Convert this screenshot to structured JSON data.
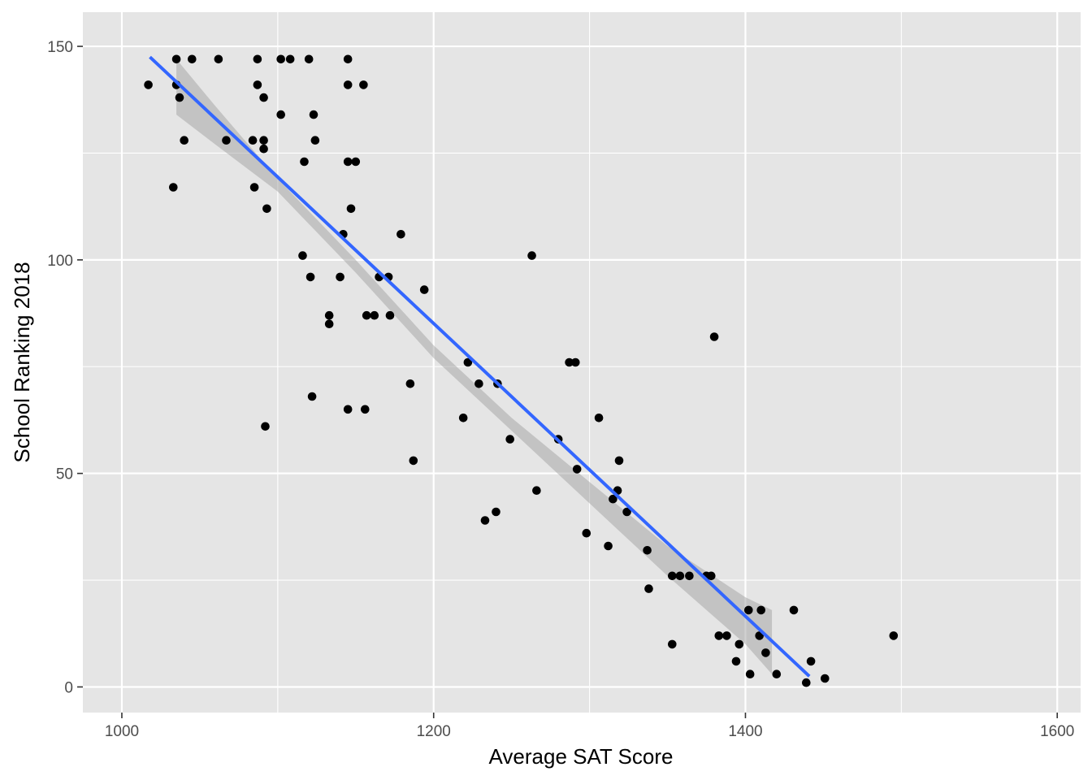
{
  "chart_data": {
    "type": "scatter",
    "title": "",
    "xlabel": "Average SAT Score",
    "ylabel": "School Ranking 2018",
    "xlim": [
      975,
      1615
    ],
    "ylim": [
      -6,
      158
    ],
    "x_ticks": [
      1000,
      1200,
      1400,
      1600
    ],
    "x_minor_ticks": [
      1100,
      1300,
      1500
    ],
    "y_ticks": [
      0,
      50,
      100,
      150
    ],
    "y_minor_ticks": [
      25,
      75,
      125
    ],
    "grid": true,
    "legend": "none",
    "colors": {
      "panel": "#e5e5e5",
      "grid": "#ffffff",
      "points": "#000000",
      "fit_line": "#3366ff",
      "confidence_band": "#999999"
    },
    "points": [
      {
        "x": 1017,
        "y": 141
      },
      {
        "x": 1033,
        "y": 117
      },
      {
        "x": 1035,
        "y": 147
      },
      {
        "x": 1035,
        "y": 141
      },
      {
        "x": 1037,
        "y": 138
      },
      {
        "x": 1040,
        "y": 128
      },
      {
        "x": 1045,
        "y": 147
      },
      {
        "x": 1062,
        "y": 147
      },
      {
        "x": 1067,
        "y": 128
      },
      {
        "x": 1084,
        "y": 128
      },
      {
        "x": 1085,
        "y": 117
      },
      {
        "x": 1087,
        "y": 147
      },
      {
        "x": 1087,
        "y": 141
      },
      {
        "x": 1091,
        "y": 138
      },
      {
        "x": 1091,
        "y": 128
      },
      {
        "x": 1091,
        "y": 126
      },
      {
        "x": 1092,
        "y": 61
      },
      {
        "x": 1093,
        "y": 112
      },
      {
        "x": 1102,
        "y": 147
      },
      {
        "x": 1102,
        "y": 134
      },
      {
        "x": 1108,
        "y": 147
      },
      {
        "x": 1116,
        "y": 101
      },
      {
        "x": 1117,
        "y": 123
      },
      {
        "x": 1120,
        "y": 147
      },
      {
        "x": 1121,
        "y": 96
      },
      {
        "x": 1122,
        "y": 68
      },
      {
        "x": 1123,
        "y": 134
      },
      {
        "x": 1124,
        "y": 128
      },
      {
        "x": 1133,
        "y": 87
      },
      {
        "x": 1133,
        "y": 85
      },
      {
        "x": 1140,
        "y": 96
      },
      {
        "x": 1142,
        "y": 106
      },
      {
        "x": 1145,
        "y": 147
      },
      {
        "x": 1145,
        "y": 141
      },
      {
        "x": 1145,
        "y": 123
      },
      {
        "x": 1145,
        "y": 65
      },
      {
        "x": 1147,
        "y": 112
      },
      {
        "x": 1150,
        "y": 123
      },
      {
        "x": 1155,
        "y": 141
      },
      {
        "x": 1156,
        "y": 65
      },
      {
        "x": 1157,
        "y": 87
      },
      {
        "x": 1162,
        "y": 87
      },
      {
        "x": 1165,
        "y": 96
      },
      {
        "x": 1171,
        "y": 96
      },
      {
        "x": 1172,
        "y": 87
      },
      {
        "x": 1179,
        "y": 106
      },
      {
        "x": 1185,
        "y": 71
      },
      {
        "x": 1187,
        "y": 53
      },
      {
        "x": 1194,
        "y": 93
      },
      {
        "x": 1219,
        "y": 63
      },
      {
        "x": 1222,
        "y": 76
      },
      {
        "x": 1229,
        "y": 71
      },
      {
        "x": 1233,
        "y": 39
      },
      {
        "x": 1240,
        "y": 41
      },
      {
        "x": 1241,
        "y": 71
      },
      {
        "x": 1249,
        "y": 58
      },
      {
        "x": 1263,
        "y": 101
      },
      {
        "x": 1266,
        "y": 46
      },
      {
        "x": 1280,
        "y": 58
      },
      {
        "x": 1287,
        "y": 76
      },
      {
        "x": 1291,
        "y": 76
      },
      {
        "x": 1292,
        "y": 51
      },
      {
        "x": 1298,
        "y": 36
      },
      {
        "x": 1306,
        "y": 63
      },
      {
        "x": 1312,
        "y": 33
      },
      {
        "x": 1315,
        "y": 44
      },
      {
        "x": 1318,
        "y": 46
      },
      {
        "x": 1319,
        "y": 53
      },
      {
        "x": 1324,
        "y": 41
      },
      {
        "x": 1337,
        "y": 32
      },
      {
        "x": 1338,
        "y": 23
      },
      {
        "x": 1353,
        "y": 26
      },
      {
        "x": 1353,
        "y": 10
      },
      {
        "x": 1358,
        "y": 26
      },
      {
        "x": 1364,
        "y": 26
      },
      {
        "x": 1375,
        "y": 26
      },
      {
        "x": 1378,
        "y": 26
      },
      {
        "x": 1380,
        "y": 82
      },
      {
        "x": 1383,
        "y": 12
      },
      {
        "x": 1388,
        "y": 12
      },
      {
        "x": 1394,
        "y": 6
      },
      {
        "x": 1396,
        "y": 10
      },
      {
        "x": 1402,
        "y": 18
      },
      {
        "x": 1403,
        "y": 3
      },
      {
        "x": 1409,
        "y": 12
      },
      {
        "x": 1410,
        "y": 18
      },
      {
        "x": 1413,
        "y": 8
      },
      {
        "x": 1420,
        "y": 3
      },
      {
        "x": 1431,
        "y": 18
      },
      {
        "x": 1439,
        "y": 1
      },
      {
        "x": 1442,
        "y": 6
      },
      {
        "x": 1451,
        "y": 2
      },
      {
        "x": 1495,
        "y": 12
      }
    ],
    "fit_line": {
      "method": "linear",
      "x_start": 1018,
      "y_start": 147.5,
      "x_end": 1441,
      "y_end": 2.5
    },
    "confidence_band": {
      "upper": [
        {
          "x": 1035,
          "y": 147
        },
        {
          "x": 1060,
          "y": 136
        },
        {
          "x": 1100,
          "y": 119
        },
        {
          "x": 1150,
          "y": 100
        },
        {
          "x": 1200,
          "y": 80
        },
        {
          "x": 1250,
          "y": 63
        },
        {
          "x": 1300,
          "y": 48
        },
        {
          "x": 1350,
          "y": 33
        },
        {
          "x": 1400,
          "y": 21
        },
        {
          "x": 1417,
          "y": 18
        }
      ],
      "lower": [
        {
          "x": 1417,
          "y": 3
        },
        {
          "x": 1400,
          "y": 10
        },
        {
          "x": 1350,
          "y": 26
        },
        {
          "x": 1300,
          "y": 43
        },
        {
          "x": 1250,
          "y": 60
        },
        {
          "x": 1200,
          "y": 77
        },
        {
          "x": 1150,
          "y": 97
        },
        {
          "x": 1100,
          "y": 116
        },
        {
          "x": 1060,
          "y": 127
        },
        {
          "x": 1035,
          "y": 134
        }
      ]
    }
  }
}
